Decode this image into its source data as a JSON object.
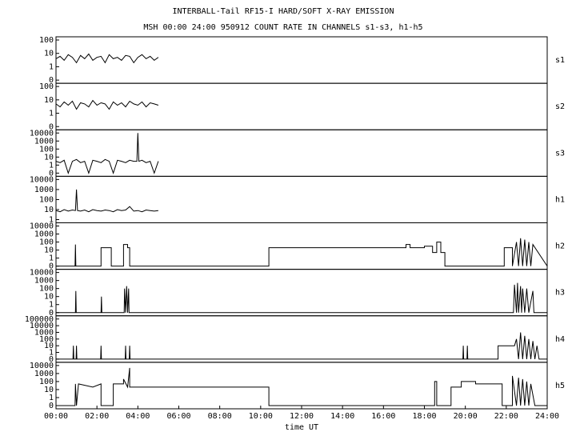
{
  "chart_data": [
    {
      "type": "line",
      "title": "INTERBALL-Tail RF15-I HARD/SOFT X-RAY EMISSION",
      "subtitle": "MSH 00:00 24:00 950912  COUNT RATE IN CHANNELS s1-s3, h1-h5",
      "x": [
        0,
        0.2,
        0.4,
        0.6,
        0.8,
        1.0,
        1.2,
        1.4,
        1.6,
        1.8,
        2.0,
        2.2,
        2.4,
        2.6,
        2.8,
        3.0,
        3.2,
        3.4,
        3.6,
        3.8,
        4.0,
        4.2,
        4.4,
        4.6,
        4.8,
        5.0
      ],
      "series": [
        {
          "name": "s1",
          "color": "#000000",
          "values": [
            4,
            6,
            3,
            8,
            5,
            2,
            7,
            4,
            9,
            3,
            5,
            6,
            2,
            8,
            4,
            5,
            3,
            7,
            6,
            2,
            5,
            8,
            4,
            6,
            3,
            5
          ]
        }
      ],
      "xlim": [
        0,
        24
      ],
      "ylim": [
        0,
        100
      ],
      "yticks": [
        0,
        1,
        10,
        100
      ],
      "yscale": "log"
    },
    {
      "type": "line",
      "x": [
        0,
        0.2,
        0.4,
        0.6,
        0.8,
        1.0,
        1.2,
        1.4,
        1.6,
        1.8,
        2.0,
        2.2,
        2.4,
        2.6,
        2.8,
        3.0,
        3.2,
        3.4,
        3.6,
        3.8,
        4.0,
        4.2,
        4.4,
        4.6,
        4.8,
        5.0
      ],
      "series": [
        {
          "name": "s2",
          "color": "#000000",
          "values": [
            5,
            3,
            7,
            4,
            8,
            2,
            6,
            5,
            3,
            9,
            4,
            6,
            5,
            2,
            7,
            4,
            6,
            3,
            8,
            5,
            4,
            7,
            3,
            6,
            5,
            4
          ]
        }
      ],
      "xlim": [
        0,
        24
      ],
      "ylim": [
        0,
        100
      ],
      "yticks": [
        0,
        1,
        10,
        100
      ],
      "yscale": "log"
    },
    {
      "type": "line",
      "x": [
        0,
        0.2,
        0.4,
        0.6,
        0.8,
        1.0,
        1.2,
        1.4,
        1.6,
        1.8,
        2.0,
        2.2,
        2.4,
        2.6,
        2.8,
        3.0,
        3.2,
        3.4,
        3.6,
        3.8,
        3.95,
        4.0,
        4.05,
        4.2,
        4.4,
        4.6,
        4.8,
        5.0
      ],
      "series": [
        {
          "name": "s3",
          "color": "#000000",
          "values": [
            3,
            2,
            4,
            0,
            3,
            5,
            2,
            3,
            0,
            4,
            3,
            2,
            5,
            3,
            0,
            4,
            3,
            2,
            4,
            3,
            3,
            10000,
            3,
            4,
            2,
            3,
            0,
            3
          ]
        }
      ],
      "xlim": [
        0,
        24
      ],
      "ylim": [
        0,
        10000
      ],
      "yticks": [
        0,
        1,
        10,
        100,
        1000,
        10000
      ],
      "yscale": "log"
    },
    {
      "type": "line",
      "x": [
        0,
        0.2,
        0.4,
        0.6,
        0.8,
        0.95,
        1.0,
        1.05,
        1.2,
        1.4,
        1.6,
        1.8,
        2.0,
        2.2,
        2.4,
        2.6,
        2.8,
        3.0,
        3.2,
        3.4,
        3.6,
        3.8,
        4.0,
        4.2,
        4.4,
        4.6,
        4.8,
        5.0
      ],
      "series": [
        {
          "name": "h1",
          "color": "#000000",
          "values": [
            8,
            6,
            10,
            7,
            9,
            8,
            1000,
            8,
            7,
            9,
            6,
            10,
            8,
            7,
            9,
            8,
            6,
            10,
            8,
            9,
            20,
            7,
            8,
            6,
            9,
            8,
            7,
            8
          ]
        }
      ],
      "xlim": [
        0,
        24
      ],
      "ylim": [
        1,
        10000
      ],
      "yticks": [
        1,
        10,
        100,
        1000,
        10000
      ],
      "yscale": "log"
    },
    {
      "type": "line",
      "x": [
        0,
        0.93,
        0.95,
        0.97,
        2.2,
        2.2,
        2.7,
        2.7,
        3.3,
        3.3,
        3.5,
        3.5,
        3.6,
        3.6,
        10.4,
        10.4,
        17.1,
        17.1,
        17.3,
        17.3,
        18.0,
        18.0,
        18.4,
        18.4,
        18.6,
        18.6,
        18.8,
        18.8,
        19.0,
        19.0,
        21.9,
        21.9,
        22.3,
        22.3,
        22.5,
        22.6,
        22.7,
        22.8,
        22.9,
        23.0,
        23.1,
        23.2,
        23.3,
        24
      ],
      "series": [
        {
          "name": "h2",
          "color": "#000000",
          "values": [
            0,
            0,
            50,
            0,
            0,
            20,
            20,
            0,
            0,
            50,
            50,
            20,
            20,
            0,
            0,
            20,
            20,
            50,
            50,
            20,
            20,
            30,
            30,
            5,
            5,
            100,
            100,
            5,
            5,
            0,
            0,
            20,
            20,
            0,
            100,
            0,
            300,
            0,
            200,
            0,
            100,
            0,
            50,
            0
          ]
        }
      ],
      "xlim": [
        0,
        24
      ],
      "ylim": [
        0,
        10000
      ],
      "yticks": [
        0,
        1,
        10,
        100,
        1000,
        10000
      ],
      "yscale": "log"
    },
    {
      "type": "line",
      "x": [
        0,
        0.95,
        0.97,
        0.99,
        2.2,
        2.22,
        2.24,
        3.33,
        3.35,
        3.4,
        3.45,
        3.5,
        3.55,
        3.57,
        22.35,
        22.4,
        22.5,
        22.55,
        22.6,
        22.7,
        22.75,
        22.8,
        22.9,
        23.0,
        23.1,
        23.3,
        23.35,
        24
      ],
      "series": [
        {
          "name": "h3",
          "color": "#000000",
          "values": [
            0,
            0,
            50,
            0,
            0,
            10,
            0,
            0,
            100,
            0,
            200,
            0,
            100,
            0,
            0,
            300,
            0,
            500,
            0,
            200,
            0,
            100,
            0,
            100,
            0,
            50,
            0,
            0
          ]
        }
      ],
      "xlim": [
        0,
        24
      ],
      "ylim": [
        0,
        10000
      ],
      "yticks": [
        0,
        1,
        10,
        100,
        1000,
        10000
      ],
      "yscale": "log"
    },
    {
      "type": "line",
      "x": [
        0,
        0.83,
        0.85,
        0.87,
        0.98,
        1.0,
        1.02,
        2.18,
        2.2,
        2.22,
        3.38,
        3.4,
        3.42,
        3.58,
        3.6,
        3.62,
        19.88,
        19.9,
        19.92,
        20.08,
        20.1,
        20.12,
        21.6,
        21.6,
        22.4,
        22.5,
        22.6,
        22.7,
        22.8,
        22.9,
        23.0,
        23.1,
        23.2,
        23.3,
        23.4,
        23.5,
        23.6,
        24
      ],
      "series": [
        {
          "name": "h4",
          "color": "#000000",
          "values": [
            0,
            0,
            10,
            0,
            0,
            10,
            0,
            0,
            10,
            0,
            0,
            10,
            0,
            0,
            10,
            0,
            0,
            10,
            0,
            0,
            10,
            0,
            0,
            10,
            10,
            100,
            0,
            1000,
            0,
            300,
            0,
            100,
            0,
            50,
            0,
            10,
            0,
            0
          ]
        }
      ],
      "xlim": [
        0,
        24
      ],
      "ylim": [
        0,
        100000
      ],
      "yticks": [
        0,
        1,
        10,
        100,
        1000,
        10000,
        100000
      ],
      "yscale": "log"
    },
    {
      "type": "line",
      "x": [
        0,
        0.93,
        0.95,
        1.0,
        1.1,
        1.1,
        1.8,
        1.8,
        2.2,
        2.2,
        2.8,
        2.8,
        3.3,
        3.3,
        3.5,
        3.6,
        3.6,
        10.4,
        10.4,
        18.5,
        18.5,
        18.6,
        18.6,
        19.3,
        19.3,
        19.8,
        19.8,
        20.5,
        20.5,
        21.8,
        21.8,
        22.3,
        22.3,
        22.5,
        22.6,
        22.7,
        22.8,
        22.9,
        23.0,
        23.1,
        23.2,
        23.4,
        24
      ],
      "series": [
        {
          "name": "h5",
          "color": "#000000",
          "values": [
            0,
            0,
            50,
            0,
            50,
            50,
            20,
            20,
            50,
            0,
            0,
            50,
            50,
            200,
            20,
            5000,
            20,
            20,
            0,
            0,
            100,
            100,
            0,
            0,
            20,
            20,
            100,
            100,
            50,
            50,
            0,
            0,
            500,
            0,
            300,
            0,
            200,
            0,
            100,
            0,
            50,
            0,
            0
          ]
        }
      ],
      "xlim": [
        0,
        24
      ],
      "ylim": [
        0,
        10000
      ],
      "yticks": [
        0,
        1,
        10,
        100,
        1000,
        10000
      ],
      "yscale": "log",
      "xlabel": "time UT",
      "xticks": [
        {
          "value": 0,
          "label": "00:00"
        },
        {
          "value": 2,
          "label": "02:00"
        },
        {
          "value": 4,
          "label": "04:00"
        },
        {
          "value": 6,
          "label": "06:00"
        },
        {
          "value": 8,
          "label": "08:00"
        },
        {
          "value": 10,
          "label": "10:00"
        },
        {
          "value": 12,
          "label": "12:00"
        },
        {
          "value": 14,
          "label": "14:00"
        },
        {
          "value": 16,
          "label": "16:00"
        },
        {
          "value": 18,
          "label": "18:00"
        },
        {
          "value": 20,
          "label": "20:00"
        },
        {
          "value": 22,
          "label": "22:00"
        },
        {
          "value": 24,
          "label": "24:00"
        }
      ]
    }
  ]
}
